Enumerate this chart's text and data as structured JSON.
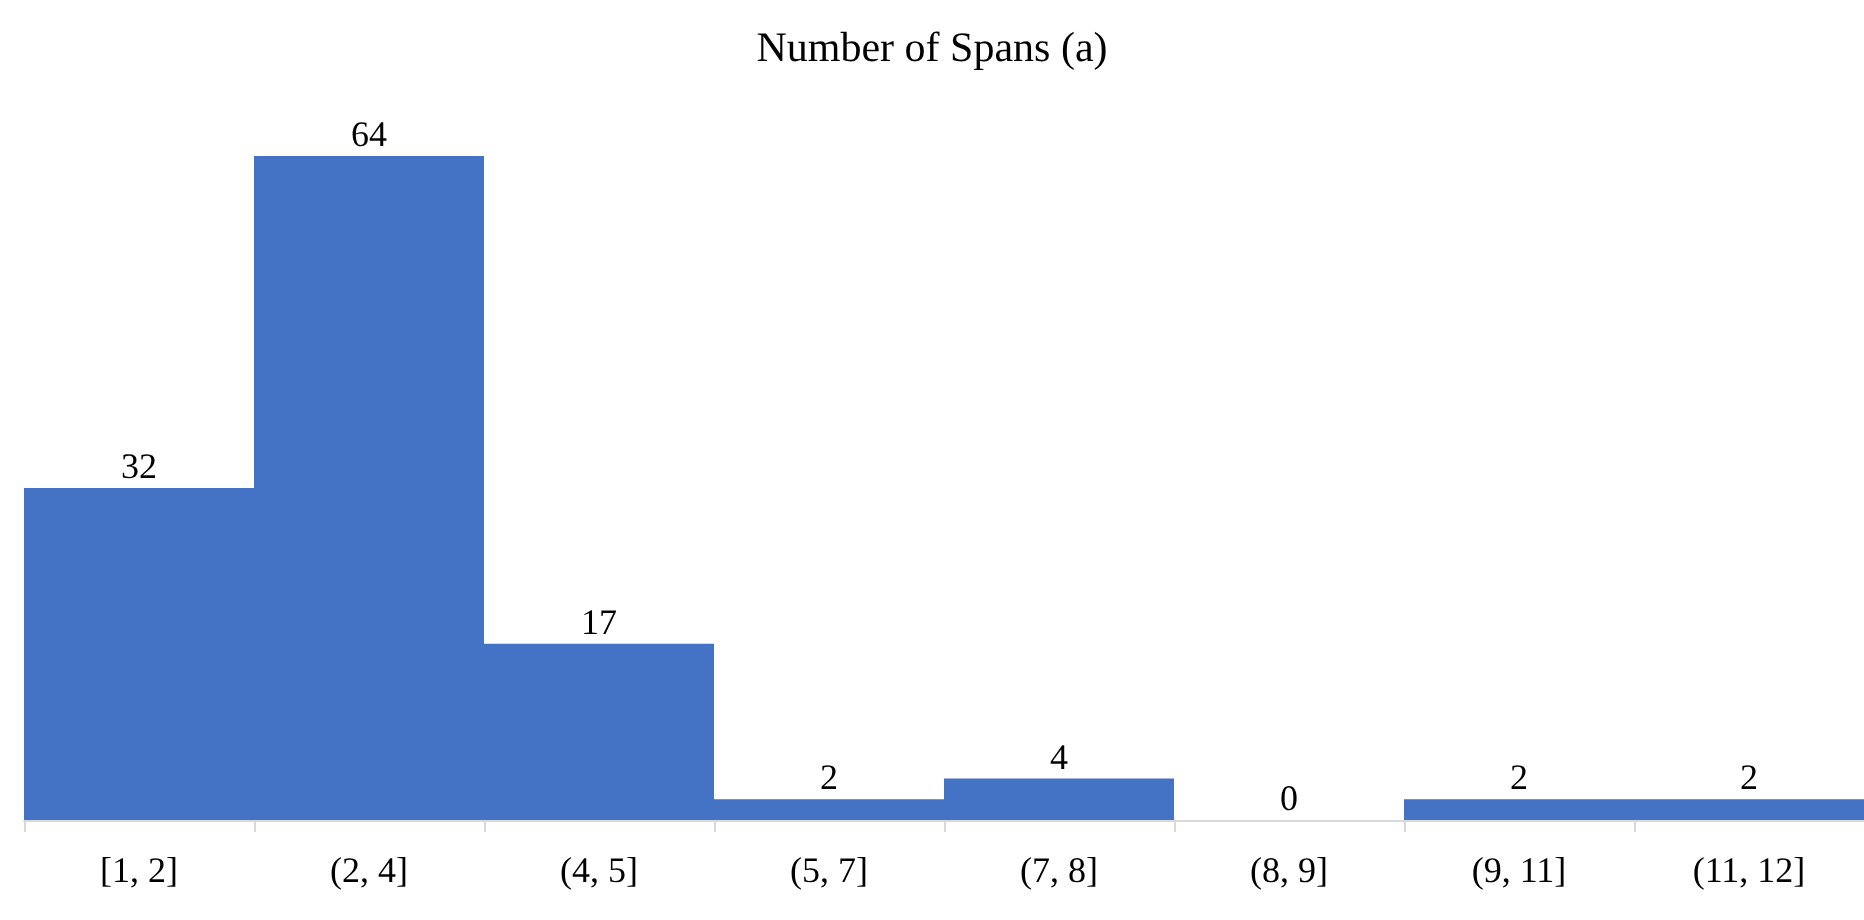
{
  "chart_data": {
    "type": "bar",
    "title": "Number of Spans (a)",
    "categories": [
      "[1, 2]",
      "(2, 4]",
      "(4, 5]",
      "(5, 7]",
      "(7, 8]",
      "(8, 9]",
      "(9, 11]",
      "(11, 12]"
    ],
    "values": [
      32,
      64,
      17,
      2,
      4,
      0,
      2,
      2
    ],
    "color": "#4472c4",
    "data_labels": true
  }
}
